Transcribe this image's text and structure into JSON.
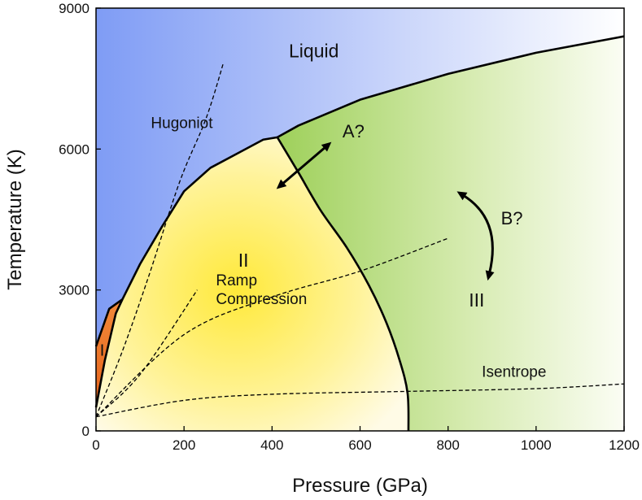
{
  "chart_data": {
    "type": "phase-diagram",
    "xlabel": "Pressure (GPa)",
    "ylabel": "Temperature (K)",
    "xlim": [
      0,
      1200
    ],
    "ylim": [
      0,
      9000
    ],
    "x_ticks": [
      0,
      200,
      400,
      600,
      800,
      1000,
      1200
    ],
    "y_ticks": [
      0,
      3000,
      6000,
      9000
    ],
    "colors": {
      "liquid": "#7f9cf5",
      "phase_I": "#e8641a",
      "phase_II": "#ffe93a",
      "phase_III": "#9ed05a",
      "line": "#000000"
    },
    "regions": [
      {
        "name": "Liquid",
        "label": "Liquid",
        "at": [
          495,
          7950
        ]
      },
      {
        "name": "I",
        "label": "I",
        "at": [
          14,
          1600
        ]
      },
      {
        "name": "II",
        "label": "II",
        "at": [
          335,
          3500
        ]
      },
      {
        "name": "III",
        "label": "III",
        "at": [
          865,
          2650
        ]
      }
    ],
    "boundaries": {
      "melt_curve": [
        [
          0,
          1800
        ],
        [
          30,
          2600
        ],
        [
          60,
          2800
        ],
        [
          100,
          3550
        ],
        [
          150,
          4350
        ],
        [
          200,
          5100
        ],
        [
          260,
          5600
        ],
        [
          320,
          5900
        ],
        [
          380,
          6200
        ],
        [
          412,
          6250
        ],
        [
          460,
          6500
        ],
        [
          600,
          7050
        ],
        [
          800,
          7600
        ],
        [
          1000,
          8050
        ],
        [
          1200,
          8400
        ]
      ],
      "phase_I_II": [
        [
          0,
          500
        ],
        [
          20,
          1500
        ],
        [
          45,
          2500
        ],
        [
          60,
          2800
        ]
      ],
      "phase_II_III": [
        [
          412,
          6250
        ],
        [
          460,
          5500
        ],
        [
          510,
          4700
        ],
        [
          570,
          3900
        ],
        [
          620,
          3100
        ],
        [
          660,
          2300
        ],
        [
          690,
          1500
        ],
        [
          708,
          800
        ],
        [
          710,
          0
        ]
      ]
    },
    "curves": [
      {
        "name": "Hugoniot",
        "label": "Hugoniot",
        "label_at": [
          195,
          6450
        ],
        "points": [
          [
            0,
            300
          ],
          [
            60,
            1700
          ],
          [
            120,
            3300
          ],
          [
            190,
            5300
          ],
          [
            250,
            6650
          ],
          [
            290,
            7850
          ]
        ]
      },
      {
        "name": "Ramp Compression",
        "label": "Ramp\nCompression",
        "label_lines": [
          "Ramp",
          "Compression"
        ],
        "label_at": [
          376,
          3100
        ],
        "points": [
          [
            0,
            300
          ],
          [
            200,
            2050
          ],
          [
            400,
            2850
          ],
          [
            600,
            3400
          ],
          [
            800,
            4100
          ]
        ]
      },
      {
        "name": "Isentrope",
        "label": "Isentrope",
        "label_at": [
          950,
          1150
        ],
        "points": [
          [
            0,
            300
          ],
          [
            200,
            650
          ],
          [
            400,
            780
          ],
          [
            700,
            840
          ],
          [
            1000,
            900
          ],
          [
            1200,
            1000
          ]
        ]
      },
      {
        "name": "extra-isentrope",
        "points": [
          [
            0,
            300
          ],
          [
            100,
            1200
          ],
          [
            230,
            3000
          ]
        ]
      }
    ],
    "annotations": [
      {
        "text": "A?",
        "at": [
          585,
          6250
        ],
        "arrow_from": [
          410,
          5150
        ],
        "arrow_to": [
          535,
          6150
        ],
        "bidirectional": true
      },
      {
        "text": "B?",
        "at": [
          945,
          4400
        ],
        "arrow_from": [
          820,
          5100
        ],
        "arrow_to": [
          890,
          3200
        ],
        "curved": true,
        "bidirectional": true
      }
    ]
  }
}
